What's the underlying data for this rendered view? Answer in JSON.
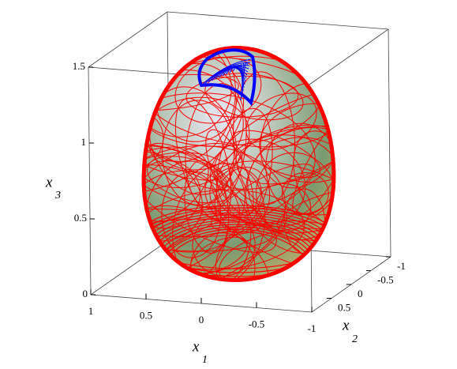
{
  "chart_data": {
    "type": "surface3d",
    "axis_labels": {
      "x1": {
        "base": "x",
        "sub": "1"
      },
      "x2": {
        "base": "x",
        "sub": "2"
      },
      "x3": {
        "base": "x",
        "sub": "3"
      }
    },
    "x1lim": [
      -1,
      1
    ],
    "x1ticks": [
      1,
      0.5,
      0,
      -0.5,
      -1
    ],
    "x2lim": [
      -1,
      1
    ],
    "x2ticks": [
      -1,
      -0.5,
      0,
      0.5
    ],
    "x3lim": [
      0,
      1.5
    ],
    "x3ticks": [
      0,
      0.5,
      1,
      1.5
    ],
    "colors": {
      "curves": "#ff0000",
      "patch": "#0000ff",
      "box": "#444444"
    }
  }
}
